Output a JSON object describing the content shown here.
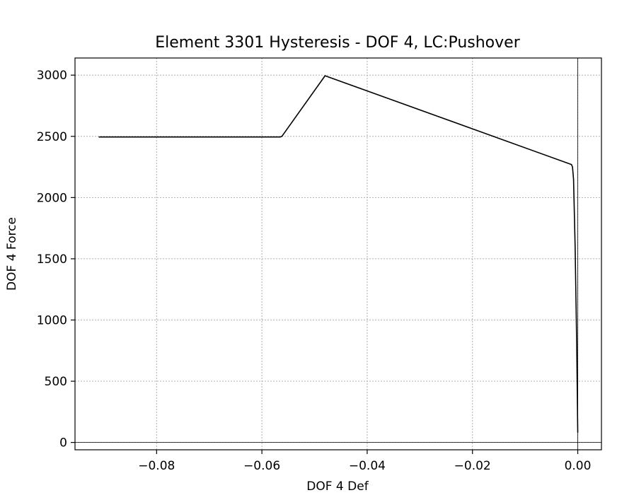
{
  "chart_data": {
    "type": "line",
    "title": "Element 3301 Hysteresis - DOF 4, LC:Pushover",
    "xlabel": "DOF 4 Def",
    "ylabel": "DOF 4 Force",
    "xlim": [
      -0.0955,
      0.0045
    ],
    "ylim": [
      -60,
      3140
    ],
    "xticks": [
      -0.08,
      -0.06,
      -0.04,
      -0.02,
      0.0
    ],
    "xtick_labels": [
      "−0.08",
      "−0.06",
      "−0.04",
      "−0.02",
      "0.00"
    ],
    "yticks": [
      0,
      500,
      1000,
      1500,
      2000,
      2500,
      3000
    ],
    "ytick_labels": [
      "0",
      "500",
      "1000",
      "1500",
      "2000",
      "2500",
      "3000"
    ],
    "grid": true,
    "zero_lines": true,
    "series": [
      {
        "color": "#000000",
        "x": [
          0.0,
          -0.0002,
          -0.0005,
          -0.0008,
          -0.001,
          -0.0012,
          -0.048,
          -0.0562,
          -0.0565,
          -0.091
        ],
        "y": [
          80,
          800,
          1600,
          2150,
          2250,
          2270,
          2995,
          2500,
          2495,
          2495
        ]
      }
    ]
  }
}
